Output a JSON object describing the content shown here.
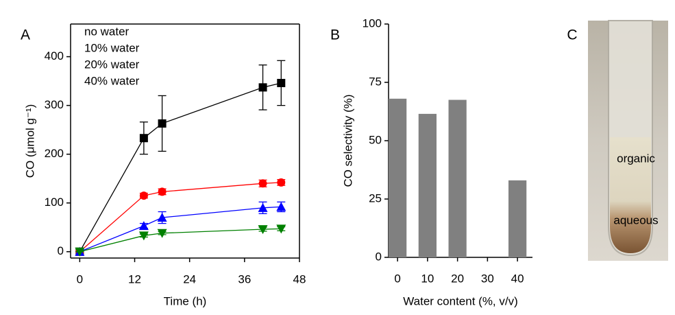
{
  "chart_data": [
    {
      "type": "line",
      "panel_label": "A",
      "xlabel": "Time (h)",
      "ylabel": "CO (μmol g⁻¹)",
      "x": [
        0,
        14,
        18,
        40,
        44
      ],
      "series": [
        {
          "name": "no water",
          "color": "#000000",
          "marker": "square",
          "values": [
            0,
            233,
            263,
            337,
            346
          ],
          "errors": [
            0,
            33,
            57,
            46,
            46
          ]
        },
        {
          "name": "10% water",
          "color": "#ff0000",
          "marker": "circle",
          "values": [
            0,
            115,
            123,
            140,
            142
          ],
          "errors": [
            0,
            5,
            6,
            7,
            6
          ]
        },
        {
          "name": "20% water",
          "color": "#0000ff",
          "marker": "triangle-up",
          "values": [
            0,
            53,
            70,
            90,
            92
          ],
          "errors": [
            0,
            5,
            12,
            12,
            10
          ]
        },
        {
          "name": "40% water",
          "color": "#008000",
          "marker": "triangle-down",
          "values": [
            0,
            33,
            38,
            46,
            47
          ],
          "errors": [
            0,
            3,
            3,
            4,
            4
          ]
        }
      ],
      "xlim": [
        -2,
        48
      ],
      "xticks": [
        0,
        12,
        24,
        36,
        48
      ],
      "ylim": [
        -13,
        467
      ],
      "yticks": [
        0,
        100,
        200,
        300,
        400
      ],
      "legend": "upper left"
    },
    {
      "type": "bar",
      "panel_label": "B",
      "xlabel": "Water content (%, v/v)",
      "ylabel": "CO selectivity (%)",
      "x": [
        0,
        10,
        20,
        40
      ],
      "values": [
        68,
        61.5,
        67.5,
        33
      ],
      "color": "#808080",
      "xlim": [
        -3,
        45
      ],
      "xticks": [
        0,
        10,
        20,
        30,
        40
      ],
      "ylim": [
        0,
        100
      ],
      "yticks": [
        0,
        25,
        50,
        75,
        100
      ]
    }
  ],
  "photo": {
    "label": "C",
    "annotations": [
      "organic",
      "aqueous"
    ]
  }
}
